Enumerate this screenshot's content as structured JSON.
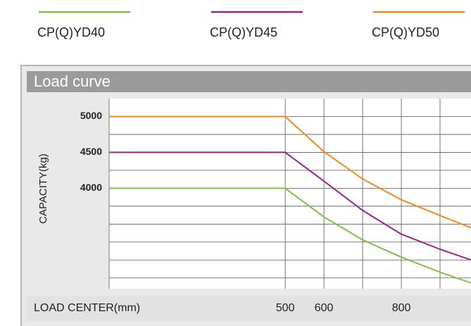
{
  "chart_data": {
    "type": "line",
    "title": "Load curve",
    "xlabel": "LOAD CENTER(mm)",
    "ylabel": "CAPACITY(kg)",
    "x": [
      45,
      500,
      600,
      700,
      800,
      900,
      980
    ],
    "series": [
      {
        "name": "CP(Q)YD40",
        "color": "#7dc242",
        "values": [
          4000,
          4000,
          3600,
          3280,
          3040,
          2830,
          2680
        ]
      },
      {
        "name": "CP(Q)YD45",
        "color": "#a0208c",
        "values": [
          4500,
          4500,
          4100,
          3690,
          3360,
          3150,
          3000
        ]
      },
      {
        "name": "CP(Q)YD50",
        "color": "#f08a1c",
        "values": [
          5000,
          5000,
          4510,
          4130,
          3840,
          3620,
          3450
        ]
      }
    ],
    "xlim": [
      45,
      980
    ],
    "xticks": [
      500,
      600,
      800
    ],
    "xgrid": [
      500,
      600,
      700,
      800,
      900
    ],
    "ylim": [
      2600,
      5250
    ],
    "yticks": [
      4000,
      4500,
      5000
    ],
    "ygrid": [
      2750,
      3000,
      3250,
      3500,
      3750,
      4000,
      4250,
      4500,
      4750,
      5000
    ],
    "grid": true
  }
}
